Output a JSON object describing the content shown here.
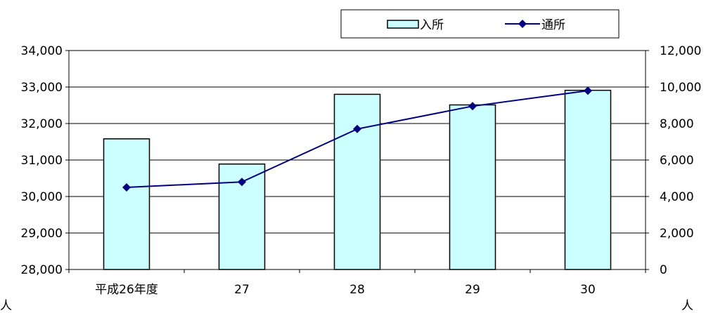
{
  "chart_data": {
    "type": "bar+line",
    "categories": [
      "平成26年度",
      "27",
      "28",
      "29",
      "30"
    ],
    "series": [
      {
        "name": "入所",
        "type": "bar",
        "axis": "left",
        "values": [
          31580,
          30890,
          32800,
          32510,
          32910
        ],
        "color": "#ccffff",
        "stroke": "#000000"
      },
      {
        "name": "通所",
        "type": "line",
        "axis": "right",
        "values": [
          4500,
          4800,
          7700,
          8950,
          9800
        ],
        "color": "#000080"
      }
    ],
    "y_left": {
      "lim": [
        28000,
        34000
      ],
      "ticks": [
        "28,000",
        "29,000",
        "30,000",
        "31,000",
        "32,000",
        "33,000",
        "34,000"
      ],
      "unit": "人"
    },
    "y_right": {
      "lim": [
        0,
        12000
      ],
      "ticks": [
        "0",
        "2,000",
        "4,000",
        "6,000",
        "8,000",
        "10,000",
        "12,000"
      ],
      "unit": "人"
    },
    "grid": true,
    "legend_position": "top-right"
  }
}
